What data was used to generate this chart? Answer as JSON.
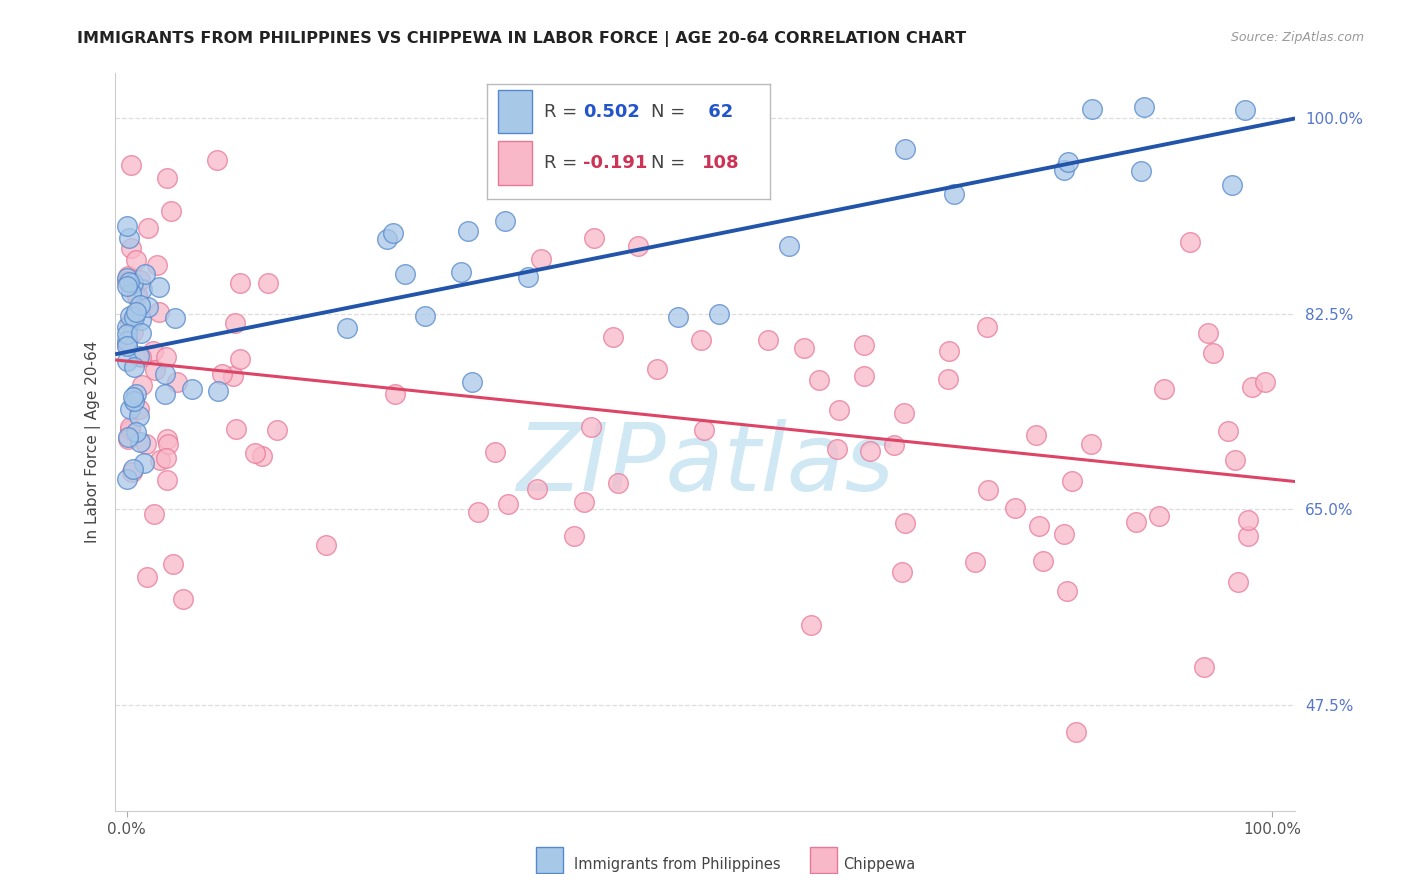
{
  "title": "IMMIGRANTS FROM PHILIPPINES VS CHIPPEWA IN LABOR FORCE | AGE 20-64 CORRELATION CHART",
  "source_text": "Source: ZipAtlas.com",
  "ylabel": "In Labor Force | Age 20-64",
  "y_ticks_labels": [
    "100.0%",
    "82.5%",
    "65.0%",
    "47.5%"
  ],
  "y_tick_vals": [
    1.0,
    0.825,
    0.65,
    0.475
  ],
  "xlim": [
    -0.01,
    1.02
  ],
  "ylim": [
    0.38,
    1.04
  ],
  "blue_fill": "#a8c8e8",
  "blue_edge": "#5588cc",
  "pink_fill": "#f8b8c8",
  "pink_edge": "#e87898",
  "blue_line_color": "#2255aa",
  "pink_line_color": "#dd4466",
  "watermark_color": "#d0e8f4",
  "grid_color": "#dddddd",
  "ytick_color": "#5577cc",
  "title_color": "#222222",
  "source_color": "#999999",
  "ylabel_color": "#444444",
  "bg_color": "#ffffff",
  "legend_edge": "#bbbbbb"
}
